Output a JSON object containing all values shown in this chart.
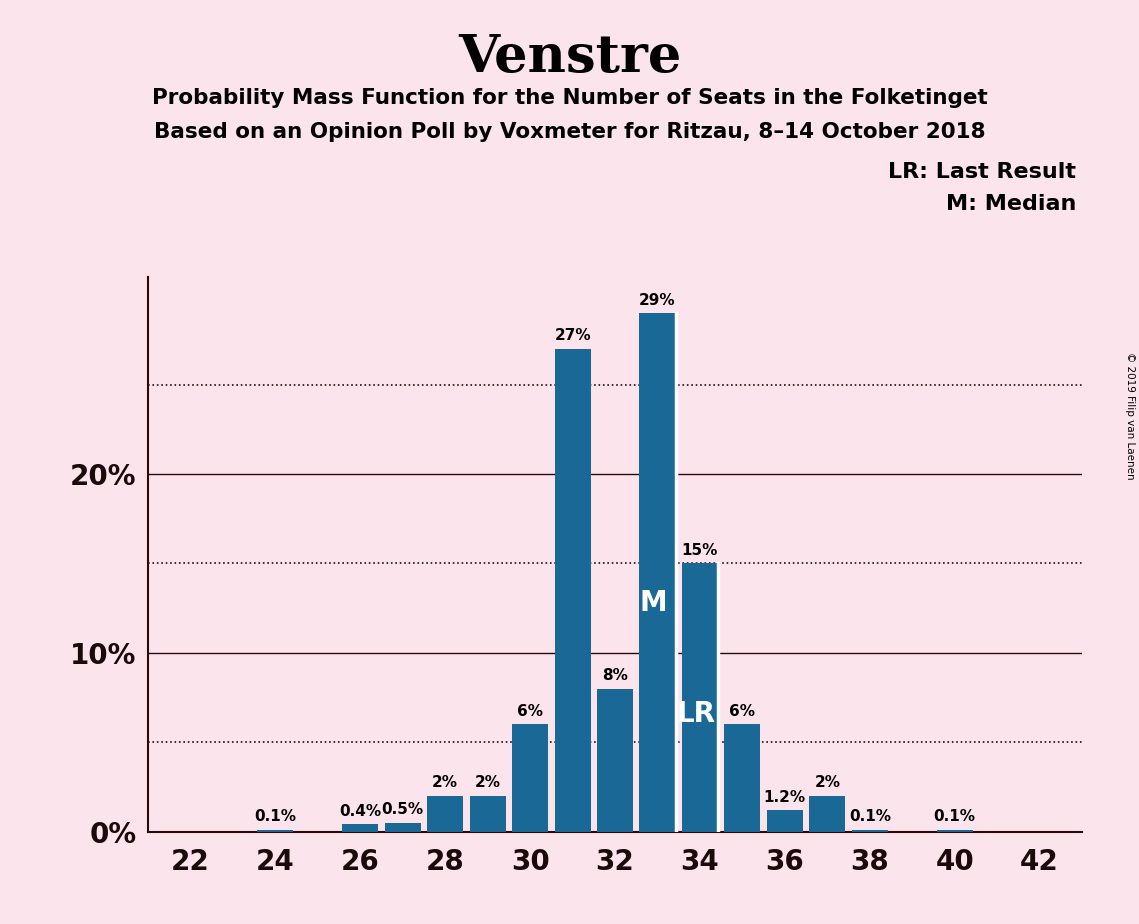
{
  "title": "Venstre",
  "subtitle1": "Probability Mass Function for the Number of Seats in the Folketinget",
  "subtitle2": "Based on an Opinion Poll by Voxmeter for Ritzau, 8–14 October 2018",
  "copyright": "© 2019 Filip van Laenen",
  "legend_lr": "LR: Last Result",
  "legend_m": "M: Median",
  "seats": [
    22,
    23,
    24,
    25,
    26,
    27,
    28,
    29,
    30,
    31,
    32,
    33,
    34,
    35,
    36,
    37,
    38,
    39,
    40,
    41,
    42
  ],
  "probabilities": [
    0.0,
    0.0,
    0.1,
    0.0,
    0.4,
    0.5,
    2.0,
    2.0,
    6.0,
    27.0,
    8.0,
    29.0,
    15.0,
    6.0,
    1.2,
    2.0,
    0.1,
    0.0,
    0.1,
    0.0,
    0.0
  ],
  "labels": [
    "0%",
    "0%",
    "0.1%",
    "0%",
    "0.4%",
    "0.5%",
    "2%",
    "2%",
    "6%",
    "27%",
    "8%",
    "29%",
    "15%",
    "6%",
    "1.2%",
    "2%",
    "0.1%",
    "0%",
    "0.1%",
    "0%",
    "0%"
  ],
  "median_seat": 33,
  "lr_seat": 34,
  "bar_color": "#1a6896",
  "background_color": "#fce4ec",
  "ylim": [
    0,
    31
  ],
  "xlabel_seats": [
    22,
    24,
    26,
    28,
    30,
    32,
    34,
    36,
    38,
    40,
    42
  ],
  "solid_gridlines": [
    10,
    20
  ],
  "dotted_gridlines": [
    5,
    15,
    25
  ],
  "ytick_positions": [
    0,
    10,
    20
  ],
  "ytick_labels": [
    "0%",
    "10%",
    "20%"
  ]
}
